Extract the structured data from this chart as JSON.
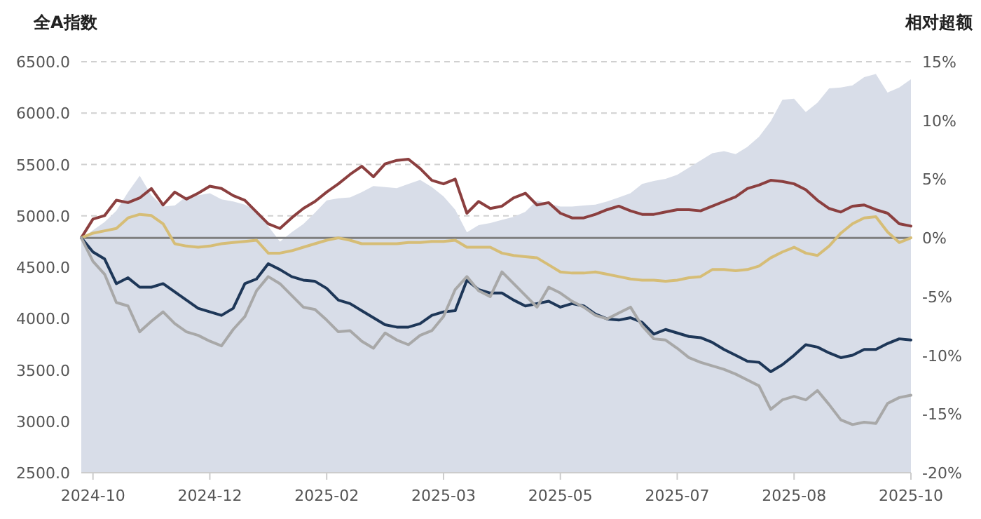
{
  "chart_data": {
    "type": "line",
    "ylabel": "全A指数",
    "y2label": "相对超额",
    "categories": [
      null,
      "2024-10",
      null,
      null,
      null,
      null,
      null,
      null,
      null,
      null,
      null,
      "2024-12",
      null,
      null,
      null,
      null,
      null,
      null,
      null,
      null,
      null,
      "2025-02",
      null,
      null,
      null,
      null,
      null,
      null,
      null,
      null,
      null,
      "2025-03",
      null,
      null,
      null,
      null,
      null,
      null,
      null,
      null,
      null,
      "2025-05",
      null,
      null,
      null,
      null,
      null,
      null,
      null,
      null,
      null,
      "2025-07",
      null,
      null,
      null,
      null,
      null,
      null,
      null,
      null,
      null,
      "2025-08",
      null,
      null,
      null,
      null,
      null,
      null,
      null,
      null,
      null,
      "2025-10"
    ],
    "ylim": [
      2500,
      6500
    ],
    "yticks": [
      {
        "value": 2500,
        "label": "2500.0"
      },
      {
        "value": 3000,
        "label": "3000.0"
      },
      {
        "value": 3500,
        "label": "3500.0"
      },
      {
        "value": 4000,
        "label": "4000.0"
      },
      {
        "value": 4500,
        "label": "4500.0"
      },
      {
        "value": 5000,
        "label": "5000.0"
      },
      {
        "value": 5500,
        "label": "5500.0"
      },
      {
        "value": 6000,
        "label": "6000.0"
      },
      {
        "value": 6500,
        "label": "6500.0"
      }
    ],
    "y2lim": [
      -20,
      15
    ],
    "y2ticks": [
      {
        "value": -20,
        "label": "-20%"
      },
      {
        "value": -15,
        "label": "-15%"
      },
      {
        "value": -10,
        "label": "-10%"
      },
      {
        "value": -5,
        "label": "-5%"
      },
      {
        "value": 0,
        "label": "0%"
      },
      {
        "value": 5,
        "label": "5%"
      },
      {
        "value": 10,
        "label": "10%"
      },
      {
        "value": 15,
        "label": "15%"
      }
    ],
    "grid": "y",
    "line_style": "solid",
    "ref_lines": [
      {
        "axis": "y2",
        "value": 0,
        "color": "#7f7f7f"
      }
    ],
    "series": [
      {
        "type": "area",
        "color": "#d8dde8",
        "values": [
          4780,
          4860,
          4940,
          5050,
          5230,
          5390,
          5200,
          5090,
          5100,
          5190,
          5200,
          5220,
          5160,
          5140,
          5110,
          5050,
          4900,
          4750,
          4840,
          4920,
          5030,
          5150,
          5170,
          5180,
          5230,
          5290,
          5280,
          5270,
          5310,
          5350,
          5280,
          5190,
          5060,
          4840,
          4910,
          4930,
          4960,
          4990,
          5040,
          5150,
          5120,
          5090,
          5090,
          5100,
          5110,
          5140,
          5180,
          5220,
          5310,
          5340,
          5360,
          5400,
          5470,
          5540,
          5610,
          5630,
          5600,
          5670,
          5770,
          5920,
          6130,
          6140,
          6010,
          6100,
          6240,
          6250,
          6270,
          6350,
          6380,
          6200,
          6250,
          6330
        ]
      },
      {
        "axis": "y2",
        "color": "#8b3f3f",
        "values": [
          0,
          1.6,
          1.9,
          3.2,
          3.0,
          3.4,
          4.2,
          2.8,
          3.9,
          3.3,
          3.8,
          4.4,
          4.2,
          3.6,
          3.2,
          2.2,
          1.2,
          0.8,
          1.7,
          2.5,
          3.1,
          3.9,
          4.6,
          5.4,
          6.1,
          5.2,
          6.3,
          6.6,
          6.7,
          5.9,
          4.9,
          4.6,
          5.0,
          2.1,
          3.1,
          2.5,
          2.7,
          3.4,
          3.8,
          2.8,
          3.0,
          2.1,
          1.7,
          1.7,
          2.0,
          2.4,
          2.7,
          2.3,
          2.0,
          2.0,
          2.2,
          2.4,
          2.4,
          2.3,
          2.7,
          3.1,
          3.5,
          4.2,
          4.5,
          4.9,
          4.8,
          4.6,
          4.1,
          3.2,
          2.5,
          2.2,
          2.7,
          2.8,
          2.4,
          2.1,
          1.2,
          1.0
        ]
      },
      {
        "axis": "y2",
        "color": "#d6bd76",
        "values": [
          0,
          0.4,
          0.6,
          0.8,
          1.7,
          2.0,
          1.9,
          1.2,
          -0.5,
          -0.7,
          -0.8,
          -0.7,
          -0.5,
          -0.4,
          -0.3,
          -0.2,
          -1.3,
          -1.3,
          -1.1,
          -0.8,
          -0.5,
          -0.2,
          0,
          -0.2,
          -0.5,
          -0.5,
          -0.5,
          -0.5,
          -0.4,
          -0.4,
          -0.3,
          -0.3,
          -0.2,
          -0.8,
          -0.8,
          -0.8,
          -1.3,
          -1.5,
          -1.6,
          -1.7,
          -2.3,
          -2.9,
          -3.0,
          -3.0,
          -2.9,
          -3.1,
          -3.3,
          -3.5,
          -3.6,
          -3.6,
          -3.7,
          -3.6,
          -3.4,
          -3.3,
          -2.7,
          -2.7,
          -2.8,
          -2.7,
          -2.4,
          -1.7,
          -1.2,
          -0.8,
          -1.3,
          -1.5,
          -0.7,
          0.4,
          1.2,
          1.7,
          1.8,
          0.5,
          -0.4,
          0
        ]
      },
      {
        "axis": "y2",
        "color": "#1e3758",
        "values": [
          0,
          -1.2,
          -1.8,
          -3.9,
          -3.4,
          -4.2,
          -4.2,
          -3.9,
          -4.6,
          -5.3,
          -6.0,
          -6.3,
          -6.6,
          -6.0,
          -3.9,
          -3.5,
          -2.2,
          -2.7,
          -3.3,
          -3.6,
          -3.7,
          -4.3,
          -5.3,
          -5.6,
          -6.2,
          -6.8,
          -7.4,
          -7.6,
          -7.6,
          -7.3,
          -6.6,
          -6.3,
          -6.2,
          -3.6,
          -4.4,
          -4.7,
          -4.7,
          -5.3,
          -5.8,
          -5.6,
          -5.4,
          -5.9,
          -5.6,
          -5.8,
          -6.5,
          -6.9,
          -7.0,
          -6.8,
          -7.2,
          -8.2,
          -7.8,
          -8.1,
          -8.4,
          -8.5,
          -8.9,
          -9.5,
          -10.0,
          -10.5,
          -10.6,
          -11.4,
          -10.8,
          -10.0,
          -9.1,
          -9.3,
          -9.8,
          -10.2,
          -10.0,
          -9.5,
          -9.5,
          -9.0,
          -8.6,
          -8.7
        ]
      },
      {
        "axis": "y2",
        "color": "#a8a8a8",
        "values": [
          0,
          -2.0,
          -3.1,
          -5.5,
          -5.8,
          -8.0,
          -7.1,
          -6.3,
          -7.3,
          -8.0,
          -8.3,
          -8.8,
          -9.2,
          -7.8,
          -6.7,
          -4.5,
          -3.3,
          -3.9,
          -4.9,
          -5.9,
          -6.1,
          -7.0,
          -8.0,
          -7.9,
          -8.8,
          -9.4,
          -8.1,
          -8.7,
          -9.1,
          -8.3,
          -7.9,
          -6.7,
          -4.4,
          -3.3,
          -4.5,
          -5.0,
          -2.9,
          -3.9,
          -4.9,
          -5.9,
          -4.2,
          -4.7,
          -5.4,
          -5.9,
          -6.6,
          -6.9,
          -6.4,
          -5.9,
          -7.5,
          -8.6,
          -8.7,
          -9.4,
          -10.2,
          -10.6,
          -10.9,
          -11.2,
          -11.6,
          -12.1,
          -12.6,
          -14.6,
          -13.8,
          -13.5,
          -13.8,
          -13.0,
          -14.2,
          -15.5,
          -15.9,
          -15.7,
          -15.8,
          -14.1,
          -13.6,
          -13.4
        ]
      }
    ]
  }
}
